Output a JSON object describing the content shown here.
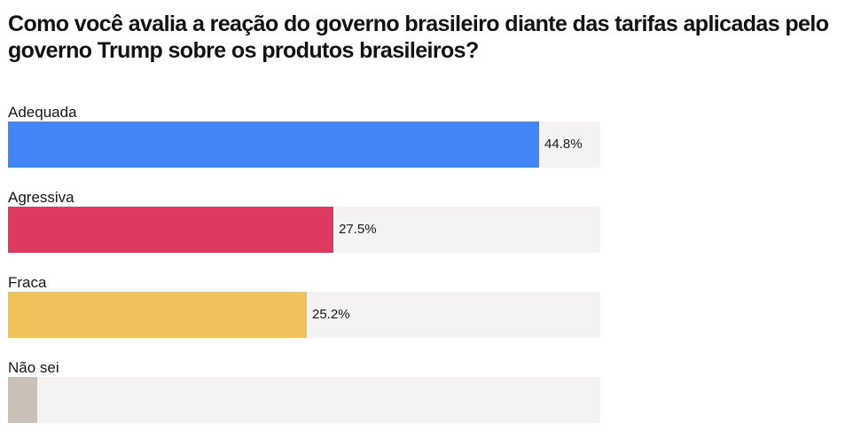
{
  "chart_data": {
    "type": "bar",
    "orientation": "horizontal",
    "title": "Como você avalia a reação do governo brasileiro diante das tarifas aplicadas pelo governo Trump sobre os produtos brasileiros?",
    "categories": [
      "Adequada",
      "Agressiva",
      "Fraca",
      "Não sei"
    ],
    "values": [
      44.8,
      27.5,
      25.2,
      2.5
    ],
    "value_labels": [
      "44.8%",
      "27.5%",
      "25.2%",
      ""
    ],
    "colors": [
      "#4285f4",
      "#dc3a5e",
      "#efc35a",
      "#c9c1b8"
    ],
    "xlim": [
      0,
      50
    ],
    "unit": "%",
    "grid": false
  }
}
